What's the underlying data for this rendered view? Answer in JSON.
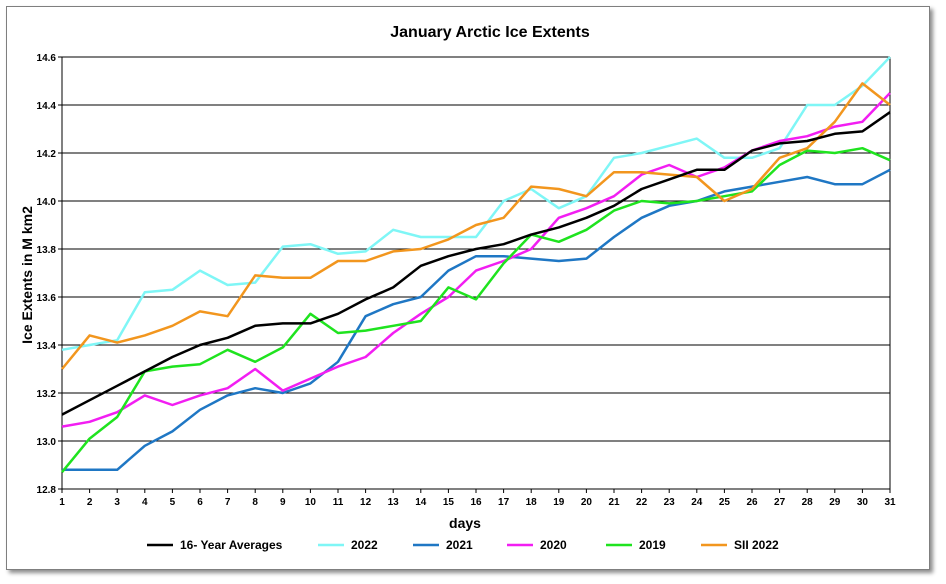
{
  "chart_data": {
    "type": "line",
    "title": "January Arctic Ice Extents",
    "xlabel": "days",
    "ylabel": "Ice Extents in M km2",
    "x": [
      1,
      2,
      3,
      4,
      5,
      6,
      7,
      8,
      9,
      10,
      11,
      12,
      13,
      14,
      15,
      16,
      17,
      18,
      19,
      20,
      21,
      22,
      23,
      24,
      25,
      26,
      27,
      28,
      29,
      30,
      31
    ],
    "xlim": [
      1,
      31
    ],
    "ylim": [
      12.8,
      14.6
    ],
    "yticks": [
      12.8,
      13.0,
      13.2,
      13.4,
      13.6,
      13.8,
      14.0,
      14.2,
      14.4,
      14.6
    ],
    "grid": "horizontal",
    "legend_position": "bottom",
    "series": [
      {
        "name": "16- Year Averages",
        "color": "#000000",
        "values": [
          13.11,
          13.17,
          13.23,
          13.29,
          13.35,
          13.4,
          13.43,
          13.48,
          13.49,
          13.49,
          13.53,
          13.59,
          13.64,
          13.73,
          13.77,
          13.8,
          13.82,
          13.86,
          13.89,
          13.93,
          13.98,
          14.05,
          14.09,
          14.13,
          14.13,
          14.21,
          14.24,
          14.25,
          14.28,
          14.29,
          14.37
        ]
      },
      {
        "name": "2022",
        "color": "#7ff6f6",
        "values": [
          13.38,
          13.4,
          13.42,
          13.62,
          13.63,
          13.71,
          13.65,
          13.66,
          13.81,
          13.82,
          13.78,
          13.79,
          13.88,
          13.85,
          13.85,
          13.85,
          14.0,
          14.05,
          13.97,
          14.02,
          14.18,
          14.2,
          14.23,
          14.26,
          14.18,
          14.18,
          14.22,
          14.4,
          14.4,
          14.48,
          14.6
        ]
      },
      {
        "name": "2021",
        "color": "#1f77c4",
        "values": [
          12.88,
          12.88,
          12.88,
          12.98,
          13.04,
          13.13,
          13.19,
          13.22,
          13.2,
          13.24,
          13.33,
          13.52,
          13.57,
          13.6,
          13.71,
          13.77,
          13.77,
          13.76,
          13.75,
          13.76,
          13.85,
          13.93,
          13.98,
          14.0,
          14.04,
          14.06,
          14.08,
          14.1,
          14.07,
          14.07,
          14.13
        ]
      },
      {
        "name": "2020",
        "color": "#f21ef2",
        "values": [
          13.06,
          13.08,
          13.12,
          13.19,
          13.15,
          13.19,
          13.22,
          13.3,
          13.21,
          13.26,
          13.31,
          13.35,
          13.45,
          13.53,
          13.6,
          13.71,
          13.75,
          13.8,
          13.93,
          13.97,
          14.02,
          14.11,
          14.15,
          14.1,
          14.14,
          14.21,
          14.25,
          14.27,
          14.31,
          14.33,
          14.45
        ]
      },
      {
        "name": "2019",
        "color": "#1fe31f",
        "values": [
          12.87,
          13.01,
          13.1,
          13.29,
          13.31,
          13.32,
          13.38,
          13.33,
          13.39,
          13.53,
          13.45,
          13.46,
          13.48,
          13.5,
          13.64,
          13.59,
          13.74,
          13.86,
          13.83,
          13.88,
          13.96,
          14.0,
          13.99,
          14.0,
          14.02,
          14.04,
          14.15,
          14.21,
          14.2,
          14.22,
          14.17
        ]
      },
      {
        "name": "SII 2022",
        "color": "#f2961e",
        "values": [
          13.3,
          13.44,
          13.41,
          13.44,
          13.48,
          13.54,
          13.52,
          13.69,
          13.68,
          13.68,
          13.75,
          13.75,
          13.79,
          13.8,
          13.84,
          13.9,
          13.93,
          14.06,
          14.05,
          14.02,
          14.12,
          14.12,
          14.11,
          14.1,
          14.0,
          14.05,
          14.18,
          14.22,
          14.33,
          14.49,
          14.4
        ]
      }
    ]
  }
}
